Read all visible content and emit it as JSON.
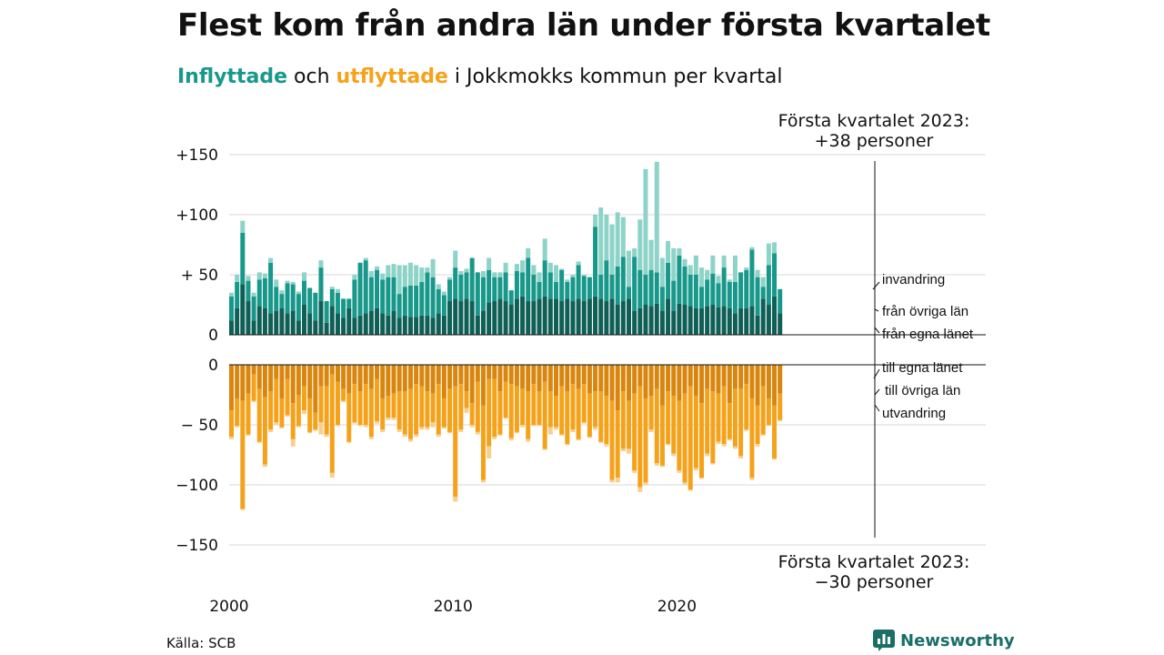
{
  "title": "Flest kom från andra län under första kvartalet",
  "subtitle": {
    "part1": "Inflyttade",
    "part2": " och ",
    "part3": "utflyttade",
    "part4": " i Jokkmokks kommun per kvartal"
  },
  "source": "Källa: SCB",
  "brand": "Newsworthy",
  "colors": {
    "in_egna": "#0f5f57",
    "in_ovriga": "#18988b",
    "in_invandring": "#8dd3c8",
    "out_egna": "#d9860e",
    "out_ovriga": "#f5a21b",
    "out_utvandring": "#f7d08f",
    "brand": "#1b6e67"
  },
  "annotations": {
    "top_line1": "Första kvartalet 2023:",
    "top_line2": "+38 personer",
    "bottom_line1": "Första kvartalet 2023:",
    "bottom_line2": "−30 personer"
  },
  "chart_data": {
    "type": "bar",
    "subtype": "stacked-diverging",
    "x_start": "2000 Q1",
    "x_ticks": [
      "2000",
      "2010",
      "2020"
    ],
    "y_ticks_in": [
      "+150",
      "+100",
      "+ 50",
      "0"
    ],
    "y_ticks_out": [
      "0",
      "− 50",
      "−100",
      "−150"
    ],
    "ylim_in": [
      0,
      150
    ],
    "ylim_out": [
      -150,
      0
    ],
    "grid": true,
    "series_in": [
      {
        "name": "från egna länet",
        "values": [
          12,
          22,
          42,
          28,
          12,
          24,
          22,
          18,
          20,
          22,
          18,
          20,
          12,
          25,
          18,
          12,
          28,
          10,
          24,
          18,
          14,
          22,
          14,
          16,
          18,
          20,
          22,
          18,
          16,
          20,
          14,
          16,
          15,
          15,
          16,
          16,
          14,
          18,
          16,
          28,
          30,
          28,
          30,
          28,
          16,
          20,
          27,
          28,
          30,
          28,
          25,
          30,
          32,
          28,
          28,
          30,
          32,
          30,
          30,
          28,
          30,
          28,
          30,
          28,
          30,
          32,
          30,
          28,
          30,
          25,
          28,
          30,
          20,
          22,
          25,
          24,
          26,
          20,
          30,
          20,
          26,
          25,
          24,
          22,
          22,
          24,
          25,
          23,
          24,
          22,
          18,
          22,
          22,
          24,
          16,
          30,
          25,
          32,
          18
        ]
      },
      {
        "name": "från övriga län",
        "values": [
          20,
          22,
          43,
          17,
          20,
          22,
          25,
          42,
          20,
          12,
          25,
          22,
          22,
          20,
          21,
          23,
          28,
          18,
          14,
          17,
          16,
          8,
          32,
          44,
          44,
          28,
          32,
          28,
          32,
          28,
          20,
          24,
          26,
          26,
          28,
          36,
          34,
          20,
          17,
          18,
          26,
          22,
          22,
          36,
          36,
          28,
          27,
          20,
          18,
          24,
          12,
          23,
          20,
          36,
          22,
          14,
          30,
          22,
          14,
          26,
          14,
          20,
          28,
          21,
          18,
          58,
          20,
          34,
          20,
          32,
          37,
          10,
          45,
          32,
          25,
          30,
          26,
          20,
          30,
          25,
          40,
          32,
          26,
          28,
          18,
          22,
          26,
          20,
          32,
          22,
          26,
          30,
          32,
          47,
          32,
          10,
          33,
          36,
          20
        ]
      },
      {
        "name": "invandring",
        "values": [
          3,
          6,
          10,
          4,
          3,
          6,
          4,
          4,
          6,
          3,
          2,
          2,
          2,
          7,
          0,
          0,
          6,
          0,
          2,
          3,
          0,
          0,
          4,
          0,
          2,
          5,
          3,
          5,
          10,
          11,
          24,
          18,
          19,
          17,
          12,
          4,
          15,
          4,
          3,
          2,
          14,
          3,
          3,
          0,
          0,
          5,
          10,
          4,
          4,
          8,
          0,
          6,
          10,
          8,
          8,
          8,
          18,
          8,
          14,
          1,
          2,
          2,
          3,
          1,
          0,
          10,
          56,
          38,
          42,
          45,
          33,
          30,
          7,
          42,
          88,
          25,
          92,
          24,
          18,
          27,
          6,
          6,
          8,
          16,
          16,
          8,
          15,
          6,
          10,
          2,
          22,
          0,
          2,
          2,
          6,
          8,
          18,
          9,
          0
        ]
      }
    ],
    "series_out": [
      {
        "name": "till egna länet",
        "values": [
          -38,
          -28,
          -30,
          -24,
          -8,
          -20,
          -27,
          -22,
          -12,
          -28,
          -12,
          -32,
          -25,
          -18,
          -28,
          -40,
          -18,
          -18,
          -8,
          -14,
          -20,
          -24,
          -16,
          -22,
          -16,
          -20,
          -12,
          -28,
          -26,
          -24,
          -22,
          -22,
          -20,
          -16,
          -18,
          -22,
          -24,
          -16,
          -28,
          -20,
          -18,
          -16,
          -22,
          -32,
          -14,
          -34,
          -12,
          -12,
          -22,
          -14,
          -16,
          -18,
          -20,
          -22,
          -16,
          -22,
          -14,
          -22,
          -26,
          -18,
          -22,
          -16,
          -20,
          -16,
          -24,
          -22,
          -22,
          -26,
          -30,
          -38,
          -22,
          -30,
          -24,
          -18,
          -28,
          -26,
          -20,
          -34,
          -22,
          -26,
          -30,
          -24,
          -18,
          -26,
          -32,
          -20,
          -22,
          -24,
          -18,
          -32,
          -20,
          -20,
          -16,
          -28,
          -34,
          -18,
          -28,
          -34,
          -24
        ]
      },
      {
        "name": "till övriga län",
        "values": [
          -22,
          -23,
          -90,
          -34,
          -22,
          -44,
          -56,
          -32,
          -36,
          -24,
          -30,
          -30,
          -26,
          -20,
          -28,
          -14,
          -30,
          -40,
          -82,
          -36,
          -10,
          -40,
          -32,
          -28,
          -34,
          -40,
          -35,
          -26,
          -18,
          -20,
          -32,
          -36,
          -42,
          -42,
          -34,
          -30,
          -24,
          -42,
          -24,
          -36,
          -92,
          -38,
          -14,
          -18,
          -42,
          -62,
          -56,
          -48,
          -36,
          -30,
          -45,
          -38,
          -30,
          -40,
          -34,
          -28,
          -56,
          -30,
          -26,
          -40,
          -44,
          -38,
          -42,
          -32,
          -36,
          -30,
          -42,
          -40,
          -66,
          -56,
          -48,
          -40,
          -64,
          -84,
          -70,
          -28,
          -62,
          -50,
          -44,
          -48,
          -58,
          -74,
          -86,
          -60,
          -62,
          -54,
          -60,
          -40,
          -48,
          -30,
          -48,
          -56,
          -38,
          -66,
          -32,
          -40,
          -22,
          -44,
          -22
        ]
      },
      {
        "name": "utvandring",
        "values": [
          -2,
          -1,
          -1,
          -1,
          -1,
          -1,
          -2,
          -2,
          -2,
          -1,
          -1,
          -6,
          -1,
          -3,
          -1,
          -1,
          -10,
          -2,
          -4,
          -1,
          -1,
          -1,
          -1,
          -1,
          -2,
          -2,
          -2,
          -2,
          -2,
          -2,
          -2,
          -2,
          -2,
          -2,
          -2,
          -2,
          -4,
          -2,
          -1,
          -1,
          -4,
          -2,
          -4,
          -2,
          -2,
          -2,
          -10,
          -2,
          -1,
          -1,
          -2,
          -1,
          -2,
          -2,
          -1,
          -1,
          -1,
          -6,
          -2,
          -1,
          -1,
          -2,
          -1,
          -1,
          -1,
          -2,
          -1,
          -2,
          -2,
          -4,
          -2,
          -4,
          -2,
          -4,
          -2,
          -2,
          -2,
          -1,
          -1,
          -2,
          -2,
          -2,
          -1,
          -2,
          -1,
          -2,
          -1,
          -2,
          -2,
          -1,
          -2,
          -2,
          -1,
          -2,
          -2,
          -1,
          -1,
          -1,
          -1
        ]
      }
    ],
    "segment_labels_in": [
      "invandring",
      "från övriga län",
      "från egna länet"
    ],
    "segment_labels_out": [
      "till egna länet",
      "till övriga län",
      "utvandring"
    ]
  }
}
